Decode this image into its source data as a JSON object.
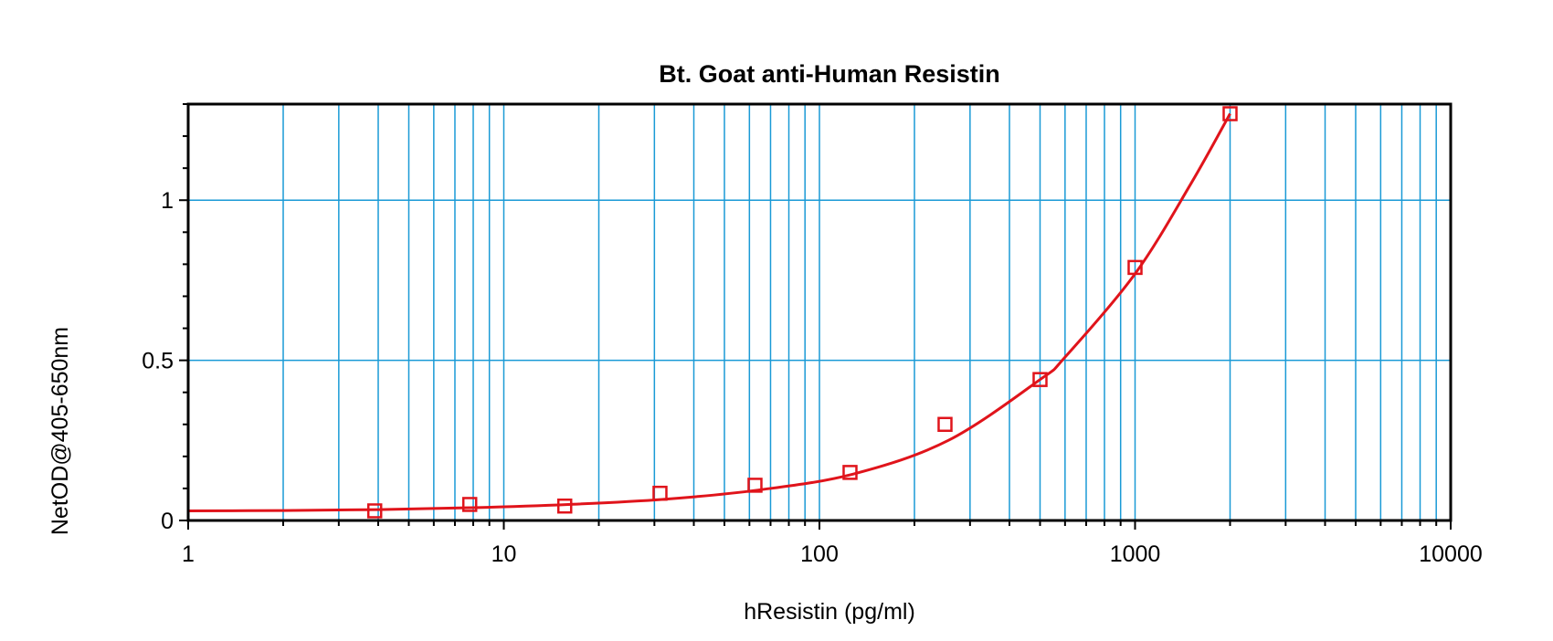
{
  "chart_data": {
    "type": "scatter",
    "title": "Bt. Goat anti-Human Resistin",
    "xlabel": "hResistin (pg/ml)",
    "ylabel": "NetOD@405-650nm",
    "x_scale": "log",
    "xlim": [
      1,
      10000
    ],
    "ylim": [
      0,
      1.3
    ],
    "x_ticks": [
      {
        "value": 1,
        "label": "1"
      },
      {
        "value": 10,
        "label": "10"
      },
      {
        "value": 100,
        "label": "100"
      },
      {
        "value": 1000,
        "label": "1000"
      },
      {
        "value": 10000,
        "label": "10000"
      }
    ],
    "y_ticks": [
      {
        "value": 0,
        "label": "0"
      },
      {
        "value": 0.5,
        "label": "0.5"
      },
      {
        "value": 1,
        "label": "1"
      }
    ],
    "grid": true,
    "series": [
      {
        "marker": "open-square",
        "color": "#e0141b",
        "x": [
          3.9,
          7.8,
          15.6,
          31.25,
          62.5,
          125,
          250,
          500,
          1000,
          2000
        ],
        "y": [
          0.03,
          0.05,
          0.045,
          0.085,
          0.11,
          0.15,
          0.3,
          0.44,
          0.79,
          1.27
        ]
      }
    ],
    "fit_curve": {
      "color": "#e0141b",
      "x": [
        1,
        2,
        4,
        8,
        16,
        32,
        64,
        128,
        256,
        500,
        600,
        1000,
        1500,
        2000
      ],
      "y": [
        0.03,
        0.031,
        0.034,
        0.04,
        0.05,
        0.066,
        0.095,
        0.145,
        0.25,
        0.44,
        0.51,
        0.77,
        1.05,
        1.27
      ]
    }
  },
  "colors": {
    "grid": "#1a9ad6",
    "series": "#e0141b",
    "axes": "#000000"
  }
}
